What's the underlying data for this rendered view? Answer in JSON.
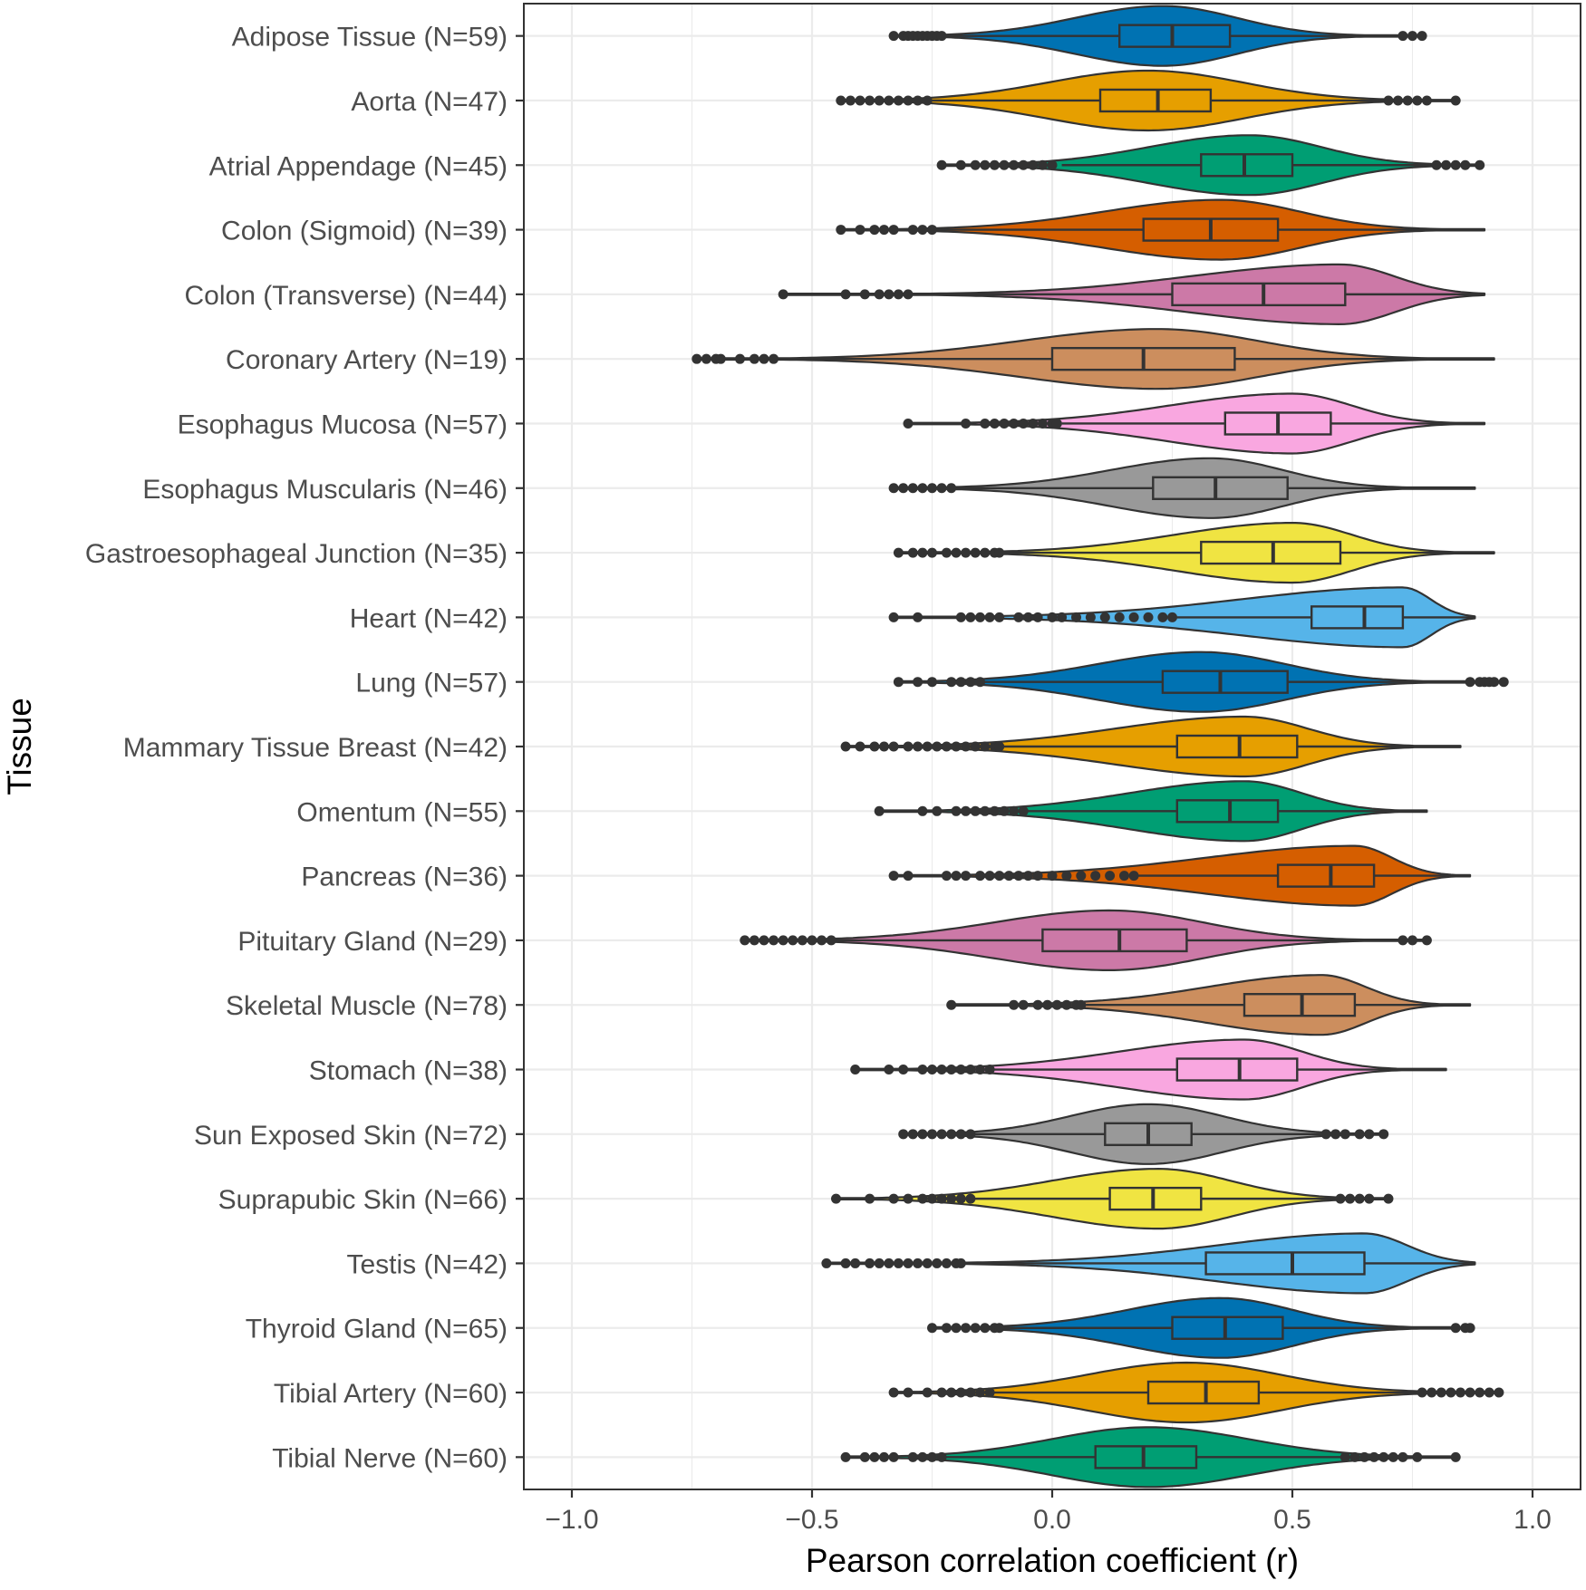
{
  "chart_data": {
    "type": "violin",
    "xlabel": "Pearson correlation coefficient (r)",
    "ylabel": "Tissue",
    "xlim": [
      -1.1,
      1.1
    ],
    "x_ticks": [
      -1.0,
      -0.5,
      0.0,
      0.5,
      1.0
    ],
    "x_tick_labels": [
      "−1.0",
      "−0.5",
      "0.0",
      "0.5",
      "1.0"
    ],
    "grid": true,
    "legend": "none",
    "series": [
      {
        "label": "Adipose Tissue (N=59)",
        "color": "#0072B2",
        "min": -0.33,
        "max": 0.77,
        "q1": 0.14,
        "median": 0.25,
        "q3": 0.37,
        "whisker_low": -0.22,
        "whisker_high": 0.72,
        "mode": 0.23,
        "outliers_low": [
          -0.33,
          -0.31,
          -0.3,
          -0.29,
          -0.28,
          -0.27,
          -0.26,
          -0.25,
          -0.24,
          -0.23
        ],
        "outliers_high": [
          0.73,
          0.75,
          0.77
        ]
      },
      {
        "label": "Aorta (N=47)",
        "color": "#E69F00",
        "min": -0.44,
        "max": 0.84,
        "q1": 0.1,
        "median": 0.22,
        "q3": 0.33,
        "whisker_low": -0.25,
        "whisker_high": 0.69,
        "mode": 0.2,
        "outliers_low": [
          -0.44,
          -0.42,
          -0.4,
          -0.38,
          -0.36,
          -0.34,
          -0.32,
          -0.3,
          -0.28,
          -0.26
        ],
        "outliers_high": [
          0.7,
          0.72,
          0.74,
          0.76,
          0.78,
          0.84
        ]
      },
      {
        "label": "Atrial Appendage (N=45)",
        "color": "#009E73",
        "min": -0.23,
        "max": 0.89,
        "q1": 0.31,
        "median": 0.4,
        "q3": 0.5,
        "whisker_low": 0.02,
        "whisker_high": 0.79,
        "mode": 0.41,
        "outliers_low": [
          -0.23,
          -0.19,
          -0.16,
          -0.14,
          -0.12,
          -0.1,
          -0.08,
          -0.06,
          -0.04,
          -0.02,
          0.0
        ],
        "outliers_high": [
          0.8,
          0.82,
          0.84,
          0.86,
          0.89
        ]
      },
      {
        "label": "Colon (Sigmoid) (N=39)",
        "color": "#D55E00",
        "min": -0.44,
        "max": 0.9,
        "q1": 0.19,
        "median": 0.33,
        "q3": 0.47,
        "whisker_low": -0.24,
        "whisker_high": 0.9,
        "mode": 0.35,
        "outliers_low": [
          -0.44,
          -0.4,
          -0.37,
          -0.35,
          -0.33,
          -0.29,
          -0.27,
          -0.25
        ],
        "outliers_high": []
      },
      {
        "label": "Colon (Transverse) (N=44)",
        "color": "#CC79A7",
        "min": -0.56,
        "max": 0.9,
        "q1": 0.25,
        "median": 0.44,
        "q3": 0.61,
        "whisker_low": -0.3,
        "whisker_high": 0.9,
        "mode": 0.6,
        "outliers_low": [
          -0.56,
          -0.43,
          -0.39,
          -0.36,
          -0.34,
          -0.32,
          -0.3
        ],
        "outliers_high": []
      },
      {
        "label": "Coronary Artery (N=19)",
        "color": "#CC8E5E",
        "min": -0.74,
        "max": 0.92,
        "q1": 0.0,
        "median": 0.19,
        "q3": 0.38,
        "whisker_low": -0.58,
        "whisker_high": 0.92,
        "mode": 0.22,
        "outliers_low": [
          -0.74,
          -0.72,
          -0.7,
          -0.69,
          -0.65,
          -0.62,
          -0.6,
          -0.58
        ],
        "outliers_high": []
      },
      {
        "label": "Esophagus Mucosa (N=57)",
        "color": "#F9A7E0",
        "min": -0.3,
        "max": 0.9,
        "q1": 0.36,
        "median": 0.47,
        "q3": 0.58,
        "whisker_low": 0.02,
        "whisker_high": 0.9,
        "mode": 0.5,
        "outliers_low": [
          -0.3,
          -0.18,
          -0.14,
          -0.12,
          -0.1,
          -0.08,
          -0.06,
          -0.04,
          -0.02,
          0.0,
          0.01
        ],
        "outliers_high": []
      },
      {
        "label": "Esophagus Muscularis (N=46)",
        "color": "#999999",
        "min": -0.33,
        "max": 0.88,
        "q1": 0.21,
        "median": 0.34,
        "q3": 0.49,
        "whisker_low": -0.2,
        "whisker_high": 0.88,
        "mode": 0.33,
        "outliers_low": [
          -0.33,
          -0.31,
          -0.29,
          -0.27,
          -0.25,
          -0.23,
          -0.21
        ],
        "outliers_high": []
      },
      {
        "label": "Gastroesophageal Junction (N=35)",
        "color": "#F0E442",
        "min": -0.32,
        "max": 0.92,
        "q1": 0.31,
        "median": 0.46,
        "q3": 0.6,
        "whisker_low": -0.1,
        "whisker_high": 0.92,
        "mode": 0.5,
        "outliers_low": [
          -0.32,
          -0.29,
          -0.27,
          -0.25,
          -0.22,
          -0.2,
          -0.18,
          -0.16,
          -0.14,
          -0.12,
          -0.11
        ],
        "outliers_high": []
      },
      {
        "label": "Heart (N=42)",
        "color": "#56B4E9",
        "min": -0.33,
        "max": 0.88,
        "q1": 0.54,
        "median": 0.65,
        "q3": 0.73,
        "whisker_low": 0.26,
        "whisker_high": 0.88,
        "mode": 0.73,
        "outliers_low": [
          -0.33,
          -0.28,
          -0.19,
          -0.17,
          -0.15,
          -0.13,
          -0.11,
          -0.07,
          -0.05,
          -0.03,
          0.0,
          0.02,
          0.05,
          0.08,
          0.11,
          0.14,
          0.17,
          0.2,
          0.23,
          0.25
        ],
        "outliers_high": []
      },
      {
        "label": "Lung (N=57)",
        "color": "#0072B2",
        "min": -0.32,
        "max": 0.94,
        "q1": 0.23,
        "median": 0.35,
        "q3": 0.49,
        "whisker_low": -0.15,
        "whisker_high": 0.82,
        "mode": 0.31,
        "outliers_low": [
          -0.32,
          -0.28,
          -0.25,
          -0.21,
          -0.19,
          -0.17,
          -0.15
        ],
        "outliers_high": [
          0.87,
          0.89,
          0.9,
          0.91,
          0.92,
          0.94
        ]
      },
      {
        "label": "Mammary Tissue Breast (N=42)",
        "color": "#E69F00",
        "min": -0.43,
        "max": 0.85,
        "q1": 0.26,
        "median": 0.39,
        "q3": 0.51,
        "whisker_low": -0.1,
        "whisker_high": 0.85,
        "mode": 0.4,
        "outliers_low": [
          -0.43,
          -0.4,
          -0.37,
          -0.35,
          -0.33,
          -0.3,
          -0.28,
          -0.26,
          -0.24,
          -0.22,
          -0.2,
          -0.18,
          -0.16,
          -0.14,
          -0.12,
          -0.11
        ],
        "outliers_high": []
      },
      {
        "label": "Omentum (N=55)",
        "color": "#009E73",
        "min": -0.36,
        "max": 0.78,
        "q1": 0.26,
        "median": 0.37,
        "q3": 0.47,
        "whisker_low": -0.05,
        "whisker_high": 0.78,
        "mode": 0.4,
        "outliers_low": [
          -0.36,
          -0.27,
          -0.24,
          -0.2,
          -0.18,
          -0.16,
          -0.14,
          -0.12,
          -0.1,
          -0.08,
          -0.06
        ],
        "outliers_high": []
      },
      {
        "label": "Pancreas (N=36)",
        "color": "#D55E00",
        "min": -0.33,
        "max": 0.87,
        "q1": 0.47,
        "median": 0.58,
        "q3": 0.67,
        "whisker_low": 0.18,
        "whisker_high": 0.87,
        "mode": 0.63,
        "outliers_low": [
          -0.33,
          -0.3,
          -0.22,
          -0.2,
          -0.18,
          -0.15,
          -0.13,
          -0.11,
          -0.09,
          -0.07,
          -0.05,
          -0.03,
          0.0,
          0.03,
          0.06,
          0.09,
          0.12,
          0.15,
          0.17
        ],
        "outliers_high": []
      },
      {
        "label": "Pituitary Gland (N=29)",
        "color": "#CC79A7",
        "min": -0.64,
        "max": 0.78,
        "q1": -0.02,
        "median": 0.14,
        "q3": 0.28,
        "whisker_low": -0.45,
        "whisker_high": 0.72,
        "mode": 0.12,
        "outliers_low": [
          -0.64,
          -0.62,
          -0.6,
          -0.58,
          -0.56,
          -0.54,
          -0.52,
          -0.5,
          -0.48,
          -0.46
        ],
        "outliers_high": [
          0.73,
          0.75,
          0.78
        ]
      },
      {
        "label": "Skeletal Muscle (N=78)",
        "color": "#CC8E5E",
        "min": -0.21,
        "max": 0.87,
        "q1": 0.4,
        "median": 0.52,
        "q3": 0.63,
        "whisker_low": 0.07,
        "whisker_high": 0.87,
        "mode": 0.56,
        "outliers_low": [
          -0.21,
          -0.08,
          -0.06,
          -0.03,
          -0.01,
          0.01,
          0.03,
          0.05,
          0.06
        ],
        "outliers_high": []
      },
      {
        "label": "Stomach (N=38)",
        "color": "#F9A7E0",
        "min": -0.41,
        "max": 0.82,
        "q1": 0.26,
        "median": 0.39,
        "q3": 0.51,
        "whisker_low": -0.13,
        "whisker_high": 0.82,
        "mode": 0.4,
        "outliers_low": [
          -0.41,
          -0.34,
          -0.31,
          -0.27,
          -0.25,
          -0.23,
          -0.21,
          -0.19,
          -0.17,
          -0.15,
          -0.13
        ],
        "outliers_high": []
      },
      {
        "label": "Sun Exposed Skin (N=72)",
        "color": "#999999",
        "min": -0.31,
        "max": 0.69,
        "q1": 0.11,
        "median": 0.2,
        "q3": 0.29,
        "whisker_low": -0.17,
        "whisker_high": 0.56,
        "mode": 0.2,
        "outliers_low": [
          -0.31,
          -0.29,
          -0.27,
          -0.25,
          -0.23,
          -0.21,
          -0.19,
          -0.17
        ],
        "outliers_high": [
          0.57,
          0.59,
          0.61,
          0.64,
          0.66,
          0.69
        ]
      },
      {
        "label": "Suprapubic Skin (N=66)",
        "color": "#F0E442",
        "min": -0.45,
        "max": 0.7,
        "q1": 0.12,
        "median": 0.21,
        "q3": 0.31,
        "whisker_low": -0.17,
        "whisker_high": 0.59,
        "mode": 0.22,
        "outliers_low": [
          -0.45,
          -0.38,
          -0.33,
          -0.3,
          -0.27,
          -0.25,
          -0.23,
          -0.21,
          -0.19,
          -0.17
        ],
        "outliers_high": [
          0.6,
          0.62,
          0.64,
          0.66,
          0.7
        ]
      },
      {
        "label": "Testis (N=42)",
        "color": "#56B4E9",
        "min": -0.47,
        "max": 0.88,
        "q1": 0.32,
        "median": 0.5,
        "q3": 0.65,
        "whisker_low": -0.18,
        "whisker_high": 0.88,
        "mode": 0.65,
        "outliers_low": [
          -0.47,
          -0.43,
          -0.41,
          -0.38,
          -0.36,
          -0.34,
          -0.32,
          -0.3,
          -0.28,
          -0.26,
          -0.24,
          -0.22,
          -0.2,
          -0.19
        ],
        "outliers_high": []
      },
      {
        "label": "Thyroid Gland (N=65)",
        "color": "#0072B2",
        "min": -0.25,
        "max": 0.87,
        "q1": 0.25,
        "median": 0.36,
        "q3": 0.48,
        "whisker_low": -0.1,
        "whisker_high": 0.84,
        "mode": 0.35,
        "outliers_low": [
          -0.25,
          -0.22,
          -0.2,
          -0.18,
          -0.16,
          -0.14,
          -0.12,
          -0.11
        ],
        "outliers_high": [
          0.84,
          0.86,
          0.87
        ]
      },
      {
        "label": "Tibial Artery (N=60)",
        "color": "#E69F00",
        "min": -0.33,
        "max": 0.93,
        "q1": 0.2,
        "median": 0.32,
        "q3": 0.43,
        "whisker_low": -0.13,
        "whisker_high": 0.76,
        "mode": 0.28,
        "outliers_low": [
          -0.33,
          -0.3,
          -0.26,
          -0.23,
          -0.21,
          -0.19,
          -0.17,
          -0.15,
          -0.13
        ],
        "outliers_high": [
          0.77,
          0.79,
          0.81,
          0.83,
          0.85,
          0.87,
          0.89,
          0.91,
          0.93
        ]
      },
      {
        "label": "Tibial Nerve (N=60)",
        "color": "#009E73",
        "min": -0.43,
        "max": 0.84,
        "q1": 0.09,
        "median": 0.19,
        "q3": 0.3,
        "whisker_low": -0.22,
        "whisker_high": 0.6,
        "mode": 0.2,
        "outliers_low": [
          -0.43,
          -0.39,
          -0.37,
          -0.35,
          -0.33,
          -0.29,
          -0.27,
          -0.25,
          -0.23
        ],
        "outliers_high": [
          0.61,
          0.63,
          0.65,
          0.67,
          0.69,
          0.71,
          0.73,
          0.76,
          0.84
        ]
      }
    ]
  }
}
